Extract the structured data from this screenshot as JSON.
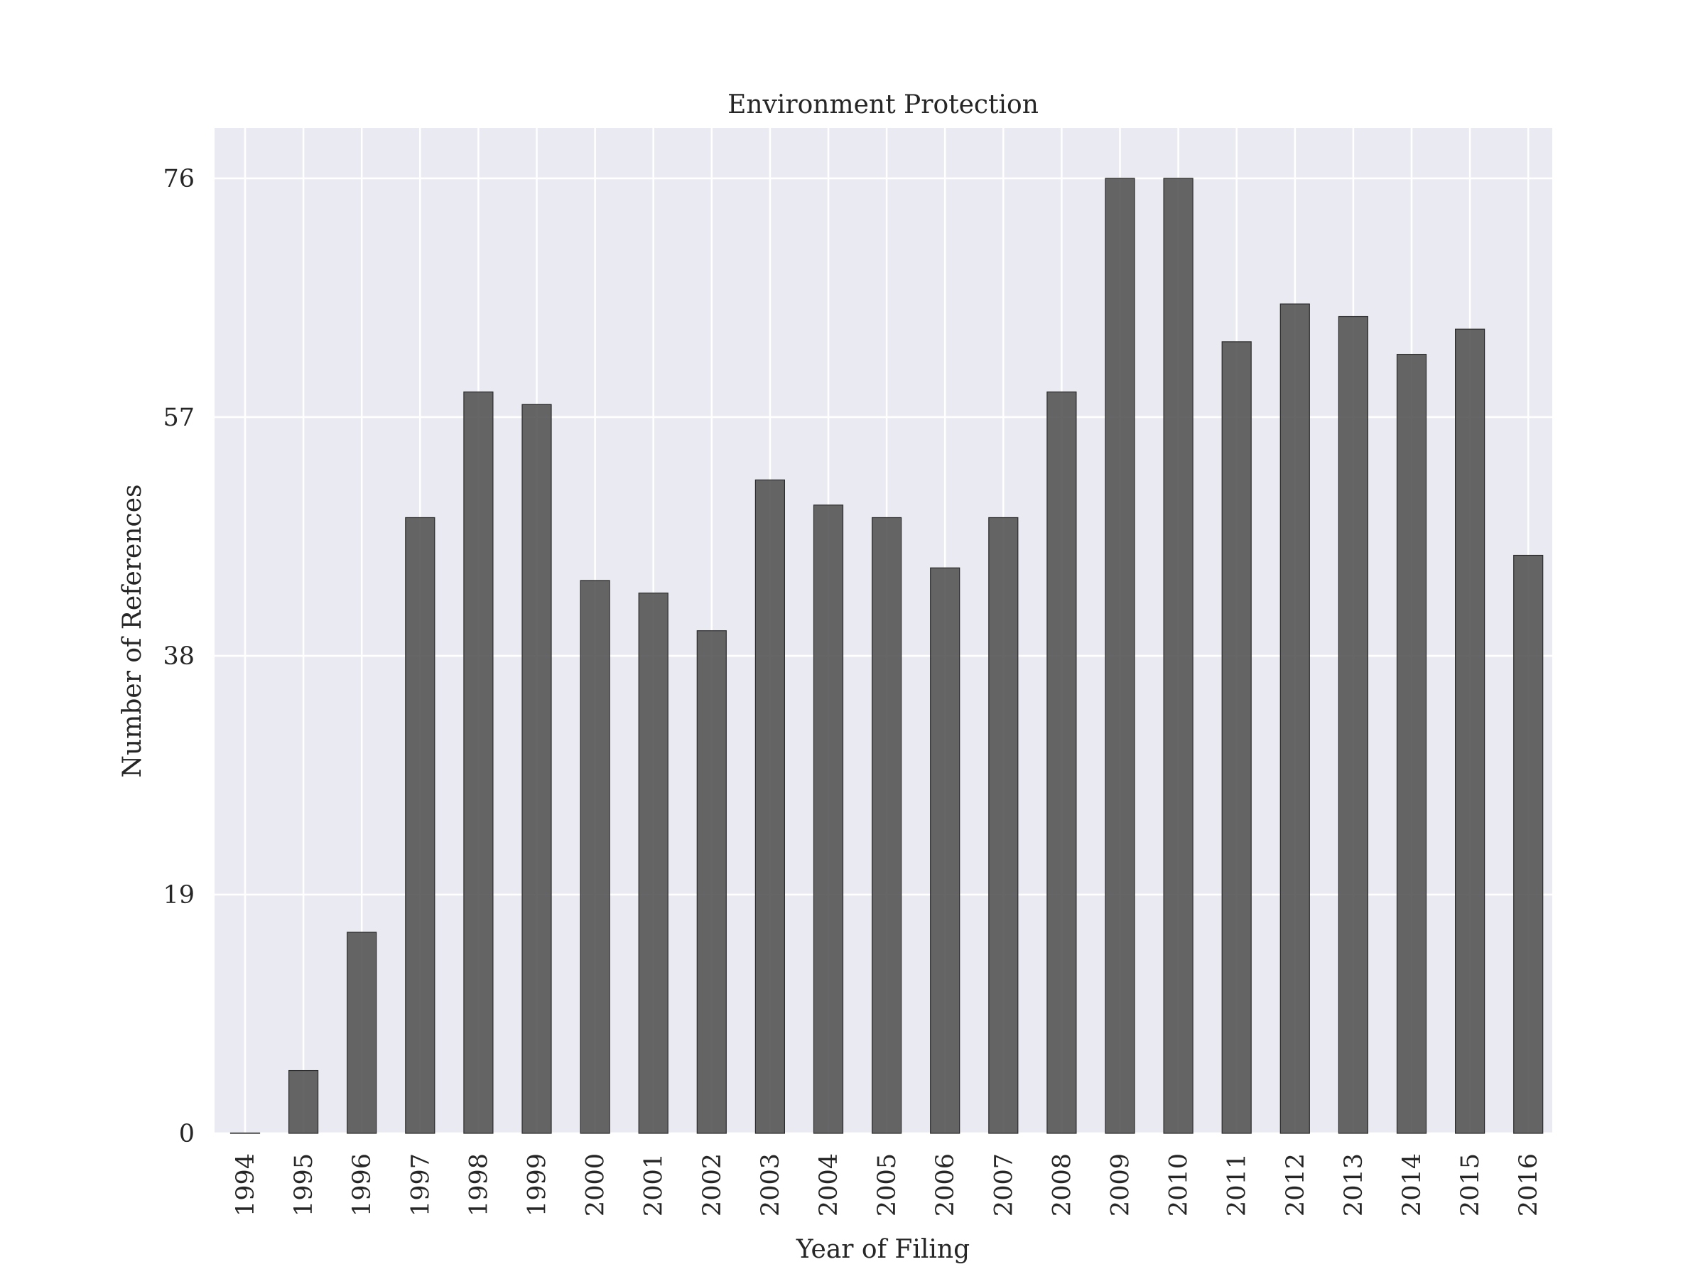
{
  "chart_data": {
    "type": "bar",
    "title": "Environment Protection",
    "xlabel": "Year of Filing",
    "ylabel": "Number of References",
    "categories": [
      "1994",
      "1995",
      "1996",
      "1997",
      "1998",
      "1999",
      "2000",
      "2001",
      "2002",
      "2003",
      "2004",
      "2005",
      "2006",
      "2007",
      "2008",
      "2009",
      "2010",
      "2011",
      "2012",
      "2013",
      "2014",
      "2015",
      "2016"
    ],
    "series": [
      {
        "values": [
          0,
          5,
          16,
          49,
          59,
          58,
          44,
          43,
          40,
          52,
          50,
          49,
          45,
          49,
          59,
          76,
          76,
          63,
          66,
          65,
          62,
          64,
          46
        ]
      }
    ],
    "yticks": [
      "0",
      "19",
      "38",
      "57",
      "76"
    ],
    "ylim": [
      0,
      80
    ],
    "grid": true,
    "bar_color": "#555555",
    "background_color": "#eaeaf2",
    "grid_color": "#ffffff"
  }
}
